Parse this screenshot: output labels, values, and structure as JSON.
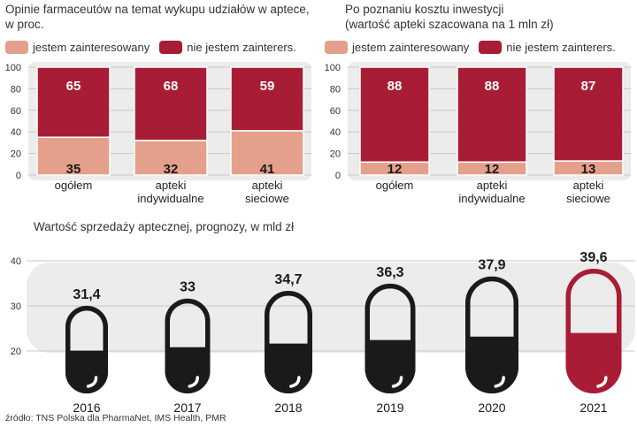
{
  "colors": {
    "interested": "#e4a08a",
    "not_interested": "#a81d35",
    "panel_bg": "#ececec",
    "pill_dark": "#1a1a1a",
    "pill_highlight": "#a81d35"
  },
  "source": "źródło: TNS Polska dla PharmaNet, IMS Health, PMR",
  "chart_data": [
    {
      "type": "bar",
      "stacked": true,
      "title": "Opinie farmaceutów na temat wykupu udziałów w aptece,",
      "subtitle": "w proc.",
      "categories": [
        "ogółem",
        "apteki\nindywidualne",
        "apteki\nsieciowe"
      ],
      "series": [
        {
          "name": "jestem zainteresowany",
          "values": [
            35,
            32,
            41
          ]
        },
        {
          "name": "nie jestem zainterers.",
          "values": [
            65,
            68,
            59
          ]
        }
      ],
      "ylim": [
        0,
        100
      ],
      "yticks": [
        0,
        20,
        40,
        60,
        80,
        100
      ],
      "grid": true,
      "legend": "top"
    },
    {
      "type": "bar",
      "stacked": true,
      "title": "Po poznaniu kosztu inwestycji",
      "subtitle": "(wartość apteki szacowana na 1 mln zł)",
      "categories": [
        "ogółem",
        "apteki\nindywidualne",
        "apteki\nsieciowe"
      ],
      "series": [
        {
          "name": "jestem zainteresowany",
          "values": [
            12,
            12,
            13
          ]
        },
        {
          "name": "nie jestem zainterers.",
          "values": [
            88,
            88,
            87
          ]
        }
      ],
      "ylim": [
        0,
        100
      ],
      "yticks": [
        0,
        20,
        40,
        60,
        80,
        100
      ],
      "grid": true,
      "legend": "top"
    },
    {
      "type": "bar",
      "title": "Wartość sprzedaży aptecznej, prognozy, w mld zł",
      "categories": [
        "2016",
        "2017",
        "2018",
        "2019",
        "2020",
        "2021"
      ],
      "values": [
        31.4,
        33,
        34.7,
        36.3,
        37.9,
        39.6
      ],
      "value_labels": [
        "31,4",
        "33",
        "34,7",
        "36,3",
        "37,9",
        "39,6"
      ],
      "highlight": [
        "2021"
      ],
      "ylim": [
        10,
        40
      ],
      "yticks": [
        20,
        30,
        40
      ],
      "grid": true
    }
  ]
}
